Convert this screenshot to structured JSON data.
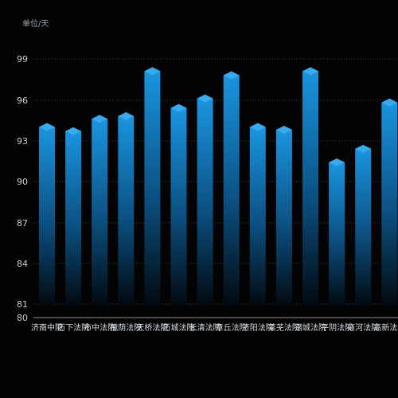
{
  "chart_data": {
    "type": "bar",
    "unit_label": "单位/天",
    "categories": [
      "济南中院",
      "历下法院",
      "市中法院",
      "槐荫法院",
      "天桥法院",
      "历城法院",
      "长清法院",
      "章丘法院",
      "济阳法院",
      "莱芜法院",
      "钢城法院",
      "平阴法院",
      "商河法院",
      "高新法院"
    ],
    "values": [
      94.0,
      93.7,
      94.6,
      94.8,
      98.1,
      95.4,
      96.1,
      97.8,
      94.0,
      93.8,
      98.1,
      91.4,
      92.4,
      95.8
    ],
    "y_ticks": [
      80,
      81,
      84,
      87,
      90,
      93,
      96,
      99
    ],
    "ylim": [
      80,
      101
    ],
    "grid": true,
    "bar_color_top": "#1a95e0",
    "bar_color_bottom": "#02090f",
    "cap_color": "#37aaf0"
  }
}
